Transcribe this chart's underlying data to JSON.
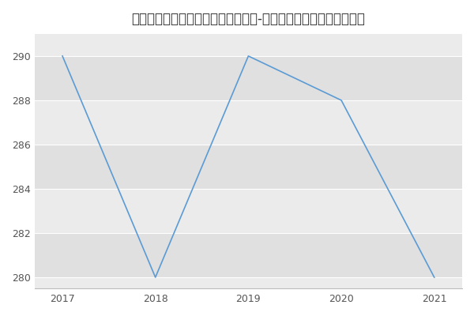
{
  "title": "新疆大学矿物学、岩石学、矿床学（-历年复试）研究生录取分数线",
  "x": [
    2017,
    2018,
    2019,
    2020,
    2021
  ],
  "y": [
    290,
    280,
    290,
    288,
    280
  ],
  "line_color": "#5b9bd5",
  "bg_color": "#ffffff",
  "plot_bg_color": "#ebebeb",
  "stripe_color": "#e0e0e0",
  "grid_color": "#ffffff",
  "xlim": [
    2016.7,
    2021.3
  ],
  "ylim": [
    279.5,
    291
  ],
  "yticks": [
    280,
    282,
    284,
    286,
    288,
    290
  ],
  "xticks": [
    2017,
    2018,
    2019,
    2020,
    2021
  ],
  "title_fontsize": 12
}
